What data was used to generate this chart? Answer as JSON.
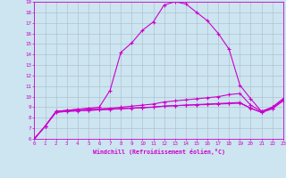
{
  "xlabel": "Windchill (Refroidissement éolien,°C)",
  "bg_color": "#cce5f0",
  "line_color": "#cc00cc",
  "grid_color": "#aabbcc",
  "xmin": 0,
  "xmax": 23,
  "ymin": 6,
  "ymax": 19,
  "line1_x": [
    0,
    1,
    2,
    3,
    4,
    5,
    6,
    7,
    8,
    9,
    10,
    11,
    12,
    13,
    14,
    15,
    16,
    17,
    18,
    19,
    20,
    21,
    22,
    23
  ],
  "line1_y": [
    6.0,
    7.2,
    8.6,
    8.7,
    8.8,
    8.9,
    9.0,
    10.6,
    14.2,
    15.1,
    16.3,
    17.1,
    18.7,
    19.0,
    18.8,
    18.0,
    17.2,
    16.0,
    14.5,
    11.1,
    9.8,
    8.6,
    9.0,
    9.8
  ],
  "line2_x": [
    0,
    1,
    2,
    3,
    4,
    5,
    6,
    7,
    8,
    9,
    10,
    11,
    12,
    13,
    14,
    15,
    16,
    17,
    18,
    19,
    20,
    21,
    22,
    23
  ],
  "line2_y": [
    6.0,
    7.2,
    8.6,
    8.7,
    8.8,
    8.85,
    8.85,
    8.9,
    9.0,
    9.1,
    9.2,
    9.3,
    9.5,
    9.6,
    9.7,
    9.8,
    9.9,
    10.0,
    10.2,
    10.3,
    9.2,
    8.6,
    9.0,
    9.8
  ],
  "line3_x": [
    0,
    1,
    2,
    3,
    4,
    5,
    6,
    7,
    8,
    9,
    10,
    11,
    12,
    13,
    14,
    15,
    16,
    17,
    18,
    19,
    20,
    21,
    22,
    23
  ],
  "line3_y": [
    6.0,
    7.2,
    8.5,
    8.6,
    8.65,
    8.7,
    8.75,
    8.8,
    8.85,
    8.9,
    8.95,
    9.0,
    9.1,
    9.15,
    9.2,
    9.25,
    9.3,
    9.35,
    9.4,
    9.45,
    8.9,
    8.5,
    8.85,
    9.6
  ],
  "line4_x": [
    0,
    1,
    2,
    3,
    4,
    5,
    6,
    7,
    8,
    9,
    10,
    11,
    12,
    13,
    14,
    15,
    16,
    17,
    18,
    19,
    20,
    21,
    22,
    23
  ],
  "line4_y": [
    6.0,
    7.2,
    8.55,
    8.62,
    8.68,
    8.72,
    8.76,
    8.82,
    8.87,
    8.92,
    8.97,
    9.02,
    9.1,
    9.15,
    9.18,
    9.22,
    9.26,
    9.3,
    9.34,
    9.38,
    8.92,
    8.52,
    8.88,
    9.65
  ]
}
